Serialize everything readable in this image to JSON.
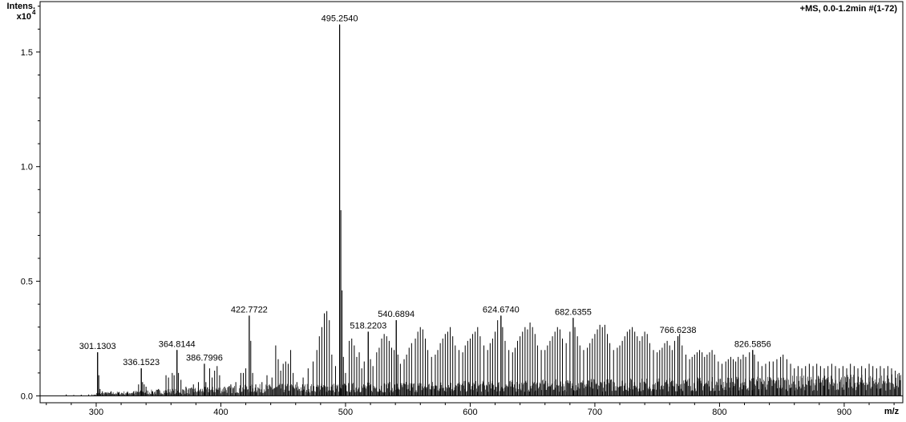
{
  "chart_data": {
    "type": "mass-spectrum",
    "y_axis_title": "Intens.",
    "y_axis_multiplier": "x10",
    "y_axis_multiplier_exp": "4",
    "x_axis_title": "m/z",
    "header": "+MS, 0.0-1.2min #(1-72)",
    "xlim": [
      255,
      947
    ],
    "ylim": [
      -0.03,
      1.72
    ],
    "x_ticks": [
      {
        "value": 300,
        "label": "300"
      },
      {
        "value": 400,
        "label": "400"
      },
      {
        "value": 500,
        "label": "500"
      },
      {
        "value": 600,
        "label": "600"
      },
      {
        "value": 700,
        "label": "700"
      },
      {
        "value": 800,
        "label": "800"
      },
      {
        "value": 900,
        "label": "900"
      }
    ],
    "y_ticks": [
      {
        "value": 0.0,
        "label": "0.0"
      },
      {
        "value": 0.5,
        "label": "0.5"
      },
      {
        "value": 1.0,
        "label": "1.0"
      },
      {
        "value": 1.5,
        "label": "1.5"
      }
    ],
    "labeled_peaks": [
      {
        "mz": 301.1303,
        "intensity": 0.19,
        "label": "301.1303"
      },
      {
        "mz": 336.1523,
        "intensity": 0.12,
        "label": "336.1523"
      },
      {
        "mz": 364.8144,
        "intensity": 0.2,
        "label": "364.8144"
      },
      {
        "mz": 386.7996,
        "intensity": 0.14,
        "label": "386.7996"
      },
      {
        "mz": 422.7722,
        "intensity": 0.35,
        "label": "422.7722"
      },
      {
        "mz": 495.254,
        "intensity": 1.62,
        "label": "495.2540"
      },
      {
        "mz": 518.2203,
        "intensity": 0.28,
        "label": "518.2203"
      },
      {
        "mz": 540.6894,
        "intensity": 0.33,
        "label": "540.6894"
      },
      {
        "mz": 624.674,
        "intensity": 0.35,
        "label": "624.6740"
      },
      {
        "mz": 682.6355,
        "intensity": 0.34,
        "label": "682.6355"
      },
      {
        "mz": 766.6238,
        "intensity": 0.26,
        "label": "766.6238"
      },
      {
        "mz": 826.5856,
        "intensity": 0.2,
        "label": "826.5856"
      }
    ],
    "peaks": [
      [
        276,
        0.006
      ],
      [
        282,
        0.004
      ],
      [
        288,
        0.005
      ],
      [
        294,
        0.006
      ],
      [
        301.1,
        0.19
      ],
      [
        302.1,
        0.09
      ],
      [
        303.1,
        0.03
      ],
      [
        305,
        0.02
      ],
      [
        308,
        0.015
      ],
      [
        312,
        0.02
      ],
      [
        318,
        0.015
      ],
      [
        325,
        0.015
      ],
      [
        330,
        0.02
      ],
      [
        334,
        0.05
      ],
      [
        336.2,
        0.12
      ],
      [
        337.2,
        0.06
      ],
      [
        338.5,
        0.05
      ],
      [
        340,
        0.04
      ],
      [
        345,
        0.02
      ],
      [
        350,
        0.03
      ],
      [
        356,
        0.09
      ],
      [
        358,
        0.08
      ],
      [
        361,
        0.1
      ],
      [
        362.5,
        0.09
      ],
      [
        364.8,
        0.2
      ],
      [
        366,
        0.1
      ],
      [
        368,
        0.07
      ],
      [
        372,
        0.04
      ],
      [
        378,
        0.05
      ],
      [
        382,
        0.06
      ],
      [
        386.8,
        0.14
      ],
      [
        388,
        0.06
      ],
      [
        391,
        0.12
      ],
      [
        393,
        0.08
      ],
      [
        395,
        0.11
      ],
      [
        397,
        0.13
      ],
      [
        399,
        0.09
      ],
      [
        403,
        0.04
      ],
      [
        408,
        0.05
      ],
      [
        412,
        0.06
      ],
      [
        416,
        0.1
      ],
      [
        418,
        0.1
      ],
      [
        420,
        0.12
      ],
      [
        422.8,
        0.35
      ],
      [
        424,
        0.24
      ],
      [
        425.5,
        0.1
      ],
      [
        428,
        0.05
      ],
      [
        433,
        0.06
      ],
      [
        437,
        0.09
      ],
      [
        441,
        0.08
      ],
      [
        444,
        0.22
      ],
      [
        446,
        0.16
      ],
      [
        448,
        0.11
      ],
      [
        450,
        0.14
      ],
      [
        452,
        0.15
      ],
      [
        454,
        0.14
      ],
      [
        456,
        0.2
      ],
      [
        458,
        0.1
      ],
      [
        461,
        0.06
      ],
      [
        466,
        0.08
      ],
      [
        470,
        0.12
      ],
      [
        474,
        0.15
      ],
      [
        477,
        0.2
      ],
      [
        479,
        0.26
      ],
      [
        481,
        0.3
      ],
      [
        483,
        0.36
      ],
      [
        485,
        0.37
      ],
      [
        487,
        0.33
      ],
      [
        489,
        0.18
      ],
      [
        492,
        0.13
      ],
      [
        495.25,
        1.62
      ],
      [
        496.25,
        0.81
      ],
      [
        497.25,
        0.46
      ],
      [
        498.3,
        0.17
      ],
      [
        500,
        0.1
      ],
      [
        503,
        0.24
      ],
      [
        505,
        0.25
      ],
      [
        507,
        0.22
      ],
      [
        509,
        0.17
      ],
      [
        511,
        0.19
      ],
      [
        513,
        0.12
      ],
      [
        515,
        0.15
      ],
      [
        518.2,
        0.28
      ],
      [
        520,
        0.16
      ],
      [
        522,
        0.13
      ],
      [
        525,
        0.19
      ],
      [
        527,
        0.21
      ],
      [
        529,
        0.25
      ],
      [
        531,
        0.27
      ],
      [
        533,
        0.26
      ],
      [
        535,
        0.24
      ],
      [
        537,
        0.21
      ],
      [
        539,
        0.2
      ],
      [
        540.7,
        0.33
      ],
      [
        542,
        0.18
      ],
      [
        544,
        0.14
      ],
      [
        547,
        0.16
      ],
      [
        549,
        0.18
      ],
      [
        551,
        0.21
      ],
      [
        553,
        0.23
      ],
      [
        556,
        0.25
      ],
      [
        558,
        0.28
      ],
      [
        560,
        0.3
      ],
      [
        562,
        0.29
      ],
      [
        564,
        0.25
      ],
      [
        566,
        0.2
      ],
      [
        569,
        0.17
      ],
      [
        572,
        0.18
      ],
      [
        574,
        0.2
      ],
      [
        576,
        0.23
      ],
      [
        578,
        0.25
      ],
      [
        580,
        0.27
      ],
      [
        582,
        0.28
      ],
      [
        584,
        0.3
      ],
      [
        586,
        0.26
      ],
      [
        588,
        0.22
      ],
      [
        591,
        0.2
      ],
      [
        594,
        0.19
      ],
      [
        596,
        0.22
      ],
      [
        598,
        0.24
      ],
      [
        600,
        0.25
      ],
      [
        602,
        0.27
      ],
      [
        604,
        0.28
      ],
      [
        606,
        0.3
      ],
      [
        608,
        0.26
      ],
      [
        611,
        0.22
      ],
      [
        614,
        0.2
      ],
      [
        616,
        0.23
      ],
      [
        618,
        0.25
      ],
      [
        620,
        0.28
      ],
      [
        622,
        0.33
      ],
      [
        624.7,
        0.35
      ],
      [
        626,
        0.3
      ],
      [
        628,
        0.24
      ],
      [
        631,
        0.2
      ],
      [
        634,
        0.19
      ],
      [
        636,
        0.21
      ],
      [
        638,
        0.24
      ],
      [
        640,
        0.26
      ],
      [
        642,
        0.28
      ],
      [
        644,
        0.3
      ],
      [
        646,
        0.29
      ],
      [
        648,
        0.32
      ],
      [
        650,
        0.3
      ],
      [
        652,
        0.27
      ],
      [
        654,
        0.22
      ],
      [
        657,
        0.2
      ],
      [
        660,
        0.2
      ],
      [
        662,
        0.22
      ],
      [
        664,
        0.24
      ],
      [
        666,
        0.26
      ],
      [
        668,
        0.28
      ],
      [
        670,
        0.3
      ],
      [
        672,
        0.29
      ],
      [
        674,
        0.25
      ],
      [
        677,
        0.23
      ],
      [
        680,
        0.28
      ],
      [
        682.6,
        0.34
      ],
      [
        684,
        0.3
      ],
      [
        686,
        0.26
      ],
      [
        688,
        0.22
      ],
      [
        691,
        0.2
      ],
      [
        694,
        0.21
      ],
      [
        696,
        0.23
      ],
      [
        698,
        0.25
      ],
      [
        700,
        0.27
      ],
      [
        702,
        0.29
      ],
      [
        704,
        0.31
      ],
      [
        706,
        0.3
      ],
      [
        708,
        0.31
      ],
      [
        710,
        0.27
      ],
      [
        712,
        0.23
      ],
      [
        715,
        0.2
      ],
      [
        718,
        0.21
      ],
      [
        720,
        0.22
      ],
      [
        722,
        0.24
      ],
      [
        724,
        0.26
      ],
      [
        726,
        0.28
      ],
      [
        728,
        0.29
      ],
      [
        730,
        0.3
      ],
      [
        732,
        0.28
      ],
      [
        734,
        0.26
      ],
      [
        736,
        0.24
      ],
      [
        738,
        0.26
      ],
      [
        740,
        0.28
      ],
      [
        742,
        0.27
      ],
      [
        744,
        0.23
      ],
      [
        747,
        0.2
      ],
      [
        750,
        0.19
      ],
      [
        752,
        0.2
      ],
      [
        754,
        0.21
      ],
      [
        756,
        0.23
      ],
      [
        758,
        0.24
      ],
      [
        760,
        0.22
      ],
      [
        762,
        0.2
      ],
      [
        764,
        0.24
      ],
      [
        766.6,
        0.26
      ],
      [
        768,
        0.27
      ],
      [
        770,
        0.22
      ],
      [
        773,
        0.18
      ],
      [
        776,
        0.16
      ],
      [
        778,
        0.17
      ],
      [
        780,
        0.18
      ],
      [
        782,
        0.19
      ],
      [
        784,
        0.2
      ],
      [
        786,
        0.19
      ],
      [
        788,
        0.17
      ],
      [
        790,
        0.18
      ],
      [
        792,
        0.19
      ],
      [
        794,
        0.2
      ],
      [
        796,
        0.18
      ],
      [
        799,
        0.15
      ],
      [
        802,
        0.14
      ],
      [
        805,
        0.15
      ],
      [
        807,
        0.16
      ],
      [
        809,
        0.17
      ],
      [
        811,
        0.16
      ],
      [
        813,
        0.15
      ],
      [
        815,
        0.17
      ],
      [
        817,
        0.16
      ],
      [
        819,
        0.18
      ],
      [
        821,
        0.17
      ],
      [
        824,
        0.19
      ],
      [
        826.6,
        0.2
      ],
      [
        828,
        0.18
      ],
      [
        831,
        0.15
      ],
      [
        834,
        0.13
      ],
      [
        837,
        0.14
      ],
      [
        840,
        0.15
      ],
      [
        843,
        0.15
      ],
      [
        846,
        0.16
      ],
      [
        849,
        0.17
      ],
      [
        851,
        0.18
      ],
      [
        854,
        0.16
      ],
      [
        857,
        0.14
      ],
      [
        860,
        0.12
      ],
      [
        863,
        0.13
      ],
      [
        866,
        0.12
      ],
      [
        869,
        0.13
      ],
      [
        872,
        0.14
      ],
      [
        875,
        0.13
      ],
      [
        878,
        0.14
      ],
      [
        881,
        0.13
      ],
      [
        884,
        0.12
      ],
      [
        887,
        0.13
      ],
      [
        890,
        0.14
      ],
      [
        893,
        0.13
      ],
      [
        896,
        0.12
      ],
      [
        899,
        0.13
      ],
      [
        902,
        0.12
      ],
      [
        905,
        0.14
      ],
      [
        908,
        0.13
      ],
      [
        911,
        0.12
      ],
      [
        914,
        0.13
      ],
      [
        917,
        0.12
      ],
      [
        920,
        0.14
      ],
      [
        923,
        0.13
      ],
      [
        926,
        0.12
      ],
      [
        929,
        0.13
      ],
      [
        932,
        0.12
      ],
      [
        935,
        0.13
      ],
      [
        938,
        0.12
      ],
      [
        941,
        0.11
      ],
      [
        944,
        0.1
      ]
    ]
  }
}
